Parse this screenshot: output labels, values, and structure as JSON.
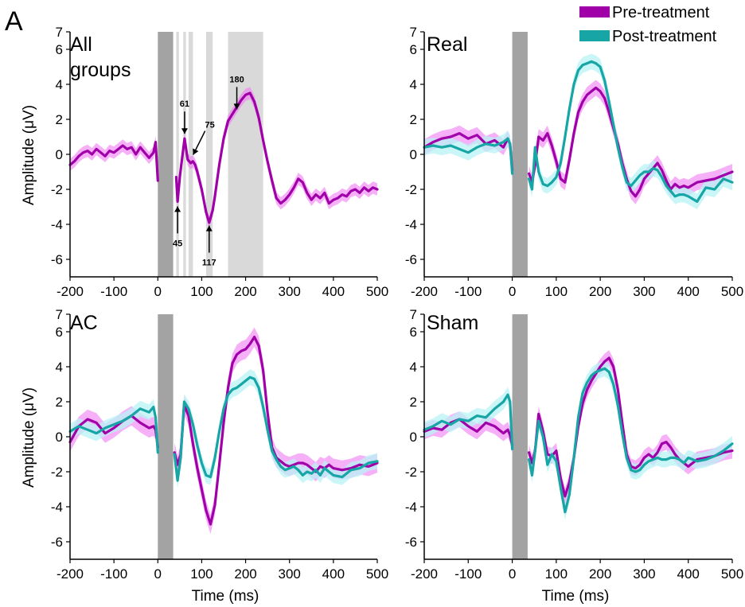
{
  "figure": {
    "panel_label": "A",
    "legend": [
      {
        "label": "Pre-treatment",
        "color": "#a000a8"
      },
      {
        "label": "Post-treatment",
        "color": "#17a5a5"
      }
    ],
    "colors": {
      "pre_line": "#a000a8",
      "pre_band": "#f07cf4",
      "post_line": "#17a5a5",
      "post_band": "#b8f3f6",
      "stim_block": "#a3a3a3",
      "window_shade": "#d9d9d9"
    }
  },
  "chart_data": [
    {
      "type": "line",
      "title": "All groups",
      "title_lines": [
        "All",
        "groups"
      ],
      "xlabel": "",
      "ylabel": "Amplitude (μV)",
      "xlim": [
        -200,
        500
      ],
      "ylim": [
        -7,
        7
      ],
      "xticks": [
        -200,
        -100,
        0,
        100,
        200,
        300,
        400,
        500
      ],
      "yticks": [
        -6,
        -4,
        -2,
        0,
        2,
        4,
        6,
        7
      ],
      "stimulus_block": [
        0,
        35
      ],
      "analysis_windows": [
        [
          42,
          48
        ],
        [
          58,
          64
        ],
        [
          70,
          80
        ],
        [
          110,
          125
        ],
        [
          160,
          240
        ]
      ],
      "annotations": [
        {
          "text": "45",
          "x": 45,
          "y": -2.7,
          "dir": "up"
        },
        {
          "text": "61",
          "x": 61,
          "y": 0.9,
          "dir": "down"
        },
        {
          "text": "75",
          "x": 75,
          "y": -0.3,
          "dir": "diag"
        },
        {
          "text": "117",
          "x": 117,
          "y": -3.8,
          "dir": "up"
        },
        {
          "text": "180",
          "x": 180,
          "y": 2.3,
          "dir": "down"
        }
      ],
      "series": [
        {
          "key": "pre",
          "x": [
            -200,
            -190,
            -180,
            -170,
            -160,
            -150,
            -140,
            -130,
            -120,
            -110,
            -100,
            -90,
            -80,
            -70,
            -60,
            -50,
            -40,
            -30,
            -20,
            -10,
            -5,
            0,
            null,
            42,
            45,
            50,
            55,
            61,
            68,
            75,
            80,
            85,
            90,
            100,
            110,
            117,
            125,
            130,
            140,
            150,
            160,
            170,
            180,
            190,
            200,
            210,
            220,
            230,
            240,
            250,
            260,
            270,
            280,
            290,
            300,
            310,
            320,
            330,
            340,
            350,
            360,
            370,
            380,
            390,
            400,
            410,
            420,
            430,
            440,
            450,
            460,
            470,
            480,
            490,
            500
          ],
          "y": [
            -0.6,
            -0.4,
            -0.1,
            0.1,
            0.2,
            0.0,
            0.3,
            0.1,
            -0.1,
            0.2,
            0.1,
            0.3,
            0.5,
            0.3,
            0.4,
            0.0,
            0.4,
            0.1,
            -0.2,
            0.1,
            0.7,
            -1.5,
            null,
            -1.3,
            -2.7,
            -1.3,
            -0.3,
            0.9,
            -0.3,
            -0.5,
            -0.4,
            -0.6,
            -1.0,
            -2.0,
            -3.3,
            -3.9,
            -3.2,
            -2.4,
            -0.6,
            0.9,
            1.9,
            2.3,
            2.7,
            3.1,
            3.4,
            3.5,
            3.0,
            2.1,
            0.8,
            -0.4,
            -1.5,
            -2.5,
            -2.8,
            -2.6,
            -2.3,
            -1.9,
            -1.4,
            -1.6,
            -2.2,
            -2.6,
            -2.3,
            -2.5,
            -2.2,
            -2.8,
            -2.6,
            -2.5,
            -2.3,
            -2.4,
            -2.1,
            -2.0,
            -2.2,
            -1.9,
            -2.1,
            -1.9,
            -2.0
          ],
          "band": 0.35
        }
      ]
    },
    {
      "type": "line",
      "title": "Real",
      "xlabel": "",
      "ylabel": "",
      "xlim": [
        -200,
        500
      ],
      "ylim": [
        -7,
        7
      ],
      "xticks": [
        -200,
        -100,
        0,
        100,
        200,
        300,
        400,
        500
      ],
      "yticks": [
        -6,
        -4,
        -2,
        0,
        2,
        4,
        6,
        7
      ],
      "stimulus_block": [
        0,
        35
      ],
      "series": [
        {
          "name": "Pre-treatment",
          "key": "pre",
          "x": [
            -200,
            -180,
            -160,
            -140,
            -120,
            -100,
            -80,
            -60,
            -40,
            -20,
            -10,
            -5,
            0,
            null,
            38,
            45,
            52,
            60,
            70,
            80,
            90,
            100,
            110,
            120,
            130,
            140,
            150,
            160,
            170,
            180,
            190,
            200,
            210,
            220,
            230,
            240,
            250,
            260,
            270,
            280,
            290,
            300,
            310,
            320,
            330,
            340,
            350,
            360,
            370,
            380,
            390,
            400,
            420,
            440,
            460,
            480,
            500
          ],
          "y": [
            0.4,
            0.7,
            0.9,
            1.0,
            1.2,
            0.9,
            1.1,
            0.6,
            0.8,
            0.4,
            0.9,
            0.6,
            -0.9,
            null,
            -1.1,
            -1.6,
            -0.6,
            1.0,
            0.8,
            1.2,
            0.5,
            -0.4,
            -1.4,
            -1.6,
            -0.3,
            1.2,
            2.4,
            3.0,
            3.4,
            3.6,
            3.8,
            3.6,
            3.2,
            2.4,
            1.5,
            0.6,
            -0.5,
            -1.4,
            -2.1,
            -2.4,
            -2.0,
            -1.4,
            -1.1,
            -0.8,
            -0.5,
            -0.9,
            -1.5,
            -2.0,
            -1.7,
            -1.9,
            -1.8,
            -1.9,
            -1.6,
            -1.5,
            -1.4,
            -1.2,
            -1.0
          ],
          "band": 0.45
        },
        {
          "name": "Post-treatment",
          "key": "post",
          "x": [
            -200,
            -180,
            -160,
            -140,
            -120,
            -100,
            -80,
            -60,
            -40,
            -20,
            -10,
            -5,
            0,
            null,
            38,
            45,
            52,
            60,
            70,
            80,
            90,
            100,
            110,
            120,
            130,
            140,
            150,
            160,
            170,
            180,
            190,
            200,
            210,
            220,
            230,
            240,
            250,
            260,
            270,
            280,
            290,
            300,
            310,
            320,
            330,
            340,
            350,
            360,
            370,
            380,
            390,
            400,
            420,
            440,
            460,
            480,
            500
          ],
          "y": [
            0.4,
            0.5,
            0.4,
            0.5,
            0.3,
            0.1,
            0.4,
            0.6,
            0.5,
            0.7,
            0.9,
            0.6,
            -1.1,
            null,
            -1.4,
            -2.0,
            0.4,
            -1.0,
            -1.7,
            -1.8,
            -1.6,
            -1.3,
            -0.5,
            1.0,
            2.6,
            4.0,
            4.8,
            5.1,
            5.2,
            5.3,
            5.2,
            5.0,
            4.2,
            3.0,
            1.7,
            0.4,
            -0.7,
            -1.6,
            -1.8,
            -1.5,
            -1.2,
            -1.0,
            -1.0,
            -0.8,
            -0.9,
            -1.3,
            -1.8,
            -2.1,
            -2.4,
            -2.3,
            -2.3,
            -2.4,
            -2.7,
            -1.9,
            -2.0,
            -1.4,
            -1.6
          ],
          "band": 0.45
        }
      ]
    },
    {
      "type": "line",
      "title": "AC",
      "xlabel": "Time (ms)",
      "ylabel": "Amplitude (μV)",
      "xlim": [
        -200,
        500
      ],
      "ylim": [
        -7,
        7
      ],
      "xticks": [
        -200,
        -100,
        0,
        100,
        200,
        300,
        400,
        500
      ],
      "yticks": [
        -6,
        -4,
        -2,
        0,
        2,
        4,
        6,
        7
      ],
      "stimulus_block": [
        0,
        35
      ],
      "series": [
        {
          "name": "Pre-treatment",
          "key": "pre",
          "x": [
            -200,
            -180,
            -160,
            -140,
            -120,
            -100,
            -80,
            -60,
            -40,
            -20,
            -10,
            -5,
            0,
            null,
            38,
            45,
            52,
            60,
            70,
            80,
            90,
            100,
            110,
            120,
            130,
            140,
            150,
            160,
            170,
            180,
            190,
            200,
            210,
            220,
            230,
            240,
            250,
            260,
            270,
            280,
            290,
            300,
            310,
            320,
            330,
            340,
            350,
            360,
            370,
            380,
            390,
            400,
            420,
            440,
            460,
            480,
            500
          ],
          "y": [
            -0.3,
            0.6,
            1.0,
            0.8,
            0.2,
            0.5,
            0.9,
            1.2,
            0.8,
            0.5,
            0.6,
            0.4,
            -0.6,
            null,
            -0.9,
            -1.6,
            -1.0,
            1.8,
            1.2,
            -0.4,
            -1.8,
            -3.0,
            -4.2,
            -5.0,
            -3.9,
            -1.6,
            0.8,
            2.8,
            4.2,
            4.7,
            4.9,
            5.0,
            5.3,
            5.7,
            5.2,
            3.8,
            1.4,
            -0.6,
            -1.2,
            -1.4,
            -1.6,
            -1.7,
            -1.6,
            -1.5,
            -1.5,
            -1.6,
            -1.8,
            -2.0,
            -1.7,
            -1.8,
            -1.6,
            -1.8,
            -1.9,
            -1.8,
            -1.6,
            -1.7,
            -1.5
          ],
          "band": 0.55
        },
        {
          "name": "Post-treatment",
          "key": "post",
          "x": [
            -200,
            -180,
            -160,
            -140,
            -120,
            -100,
            -80,
            -60,
            -40,
            -20,
            -10,
            -5,
            0,
            null,
            38,
            45,
            52,
            60,
            70,
            80,
            90,
            100,
            110,
            120,
            130,
            140,
            150,
            160,
            170,
            180,
            190,
            200,
            210,
            220,
            230,
            240,
            250,
            260,
            270,
            280,
            290,
            300,
            310,
            320,
            330,
            340,
            350,
            360,
            370,
            380,
            390,
            400,
            420,
            440,
            460,
            480,
            500
          ],
          "y": [
            0.3,
            0.6,
            0.4,
            0.2,
            0.5,
            0.7,
            0.9,
            1.2,
            1.6,
            1.4,
            1.7,
            1.1,
            -0.9,
            null,
            -1.0,
            -2.5,
            -1.2,
            2.0,
            1.6,
            0.7,
            -0.5,
            -1.5,
            -2.2,
            -2.3,
            -1.2,
            0.3,
            1.6,
            2.4,
            2.7,
            2.8,
            3.0,
            3.2,
            3.4,
            3.3,
            2.8,
            1.7,
            0.4,
            -0.8,
            -1.3,
            -1.7,
            -1.9,
            -1.8,
            -1.7,
            -1.9,
            -2.2,
            -2.0,
            -2.1,
            -1.9,
            -2.2,
            -1.8,
            -2.0,
            -2.2,
            -2.3,
            -1.9,
            -1.8,
            -1.5,
            -1.4
          ],
          "band": 0.45
        }
      ]
    },
    {
      "type": "line",
      "title": "Sham",
      "xlabel": "Time (ms)",
      "ylabel": "",
      "xlim": [
        -200,
        500
      ],
      "ylim": [
        -7,
        7
      ],
      "xticks": [
        -200,
        -100,
        0,
        100,
        200,
        300,
        400,
        500
      ],
      "yticks": [
        -6,
        -4,
        -2,
        0,
        2,
        4,
        6,
        7
      ],
      "stimulus_block": [
        0,
        35
      ],
      "series": [
        {
          "name": "Pre-treatment",
          "key": "pre",
          "x": [
            -200,
            -180,
            -160,
            -140,
            -120,
            -100,
            -80,
            -60,
            -40,
            -20,
            -10,
            -5,
            0,
            null,
            38,
            45,
            52,
            60,
            70,
            80,
            90,
            100,
            110,
            120,
            130,
            140,
            150,
            160,
            170,
            180,
            190,
            200,
            210,
            220,
            230,
            240,
            250,
            260,
            270,
            280,
            290,
            300,
            310,
            320,
            330,
            340,
            350,
            360,
            370,
            380,
            390,
            400,
            420,
            440,
            460,
            480,
            500
          ],
          "y": [
            0.3,
            0.5,
            0.4,
            0.8,
            1.0,
            0.6,
            0.3,
            0.8,
            0.6,
            0.2,
            0.4,
            0.1,
            -0.5,
            null,
            -0.9,
            -1.5,
            -0.8,
            1.3,
            0.3,
            -1.0,
            -1.1,
            -0.8,
            -2.4,
            -3.4,
            -2.6,
            -1.2,
            0.6,
            1.9,
            2.7,
            3.2,
            3.6,
            4.0,
            4.3,
            4.5,
            4.0,
            2.7,
            0.8,
            -1.0,
            -1.7,
            -1.8,
            -1.6,
            -1.2,
            -1.0,
            -1.2,
            -0.9,
            -0.4,
            -0.3,
            -0.6,
            -1.0,
            -1.3,
            -1.5,
            -1.7,
            -1.3,
            -1.2,
            -1.1,
            -0.9,
            -0.8
          ],
          "band": 0.45
        },
        {
          "name": "Post-treatment",
          "key": "post",
          "x": [
            -200,
            -180,
            -160,
            -140,
            -120,
            -100,
            -80,
            -60,
            -40,
            -20,
            -10,
            -5,
            0,
            null,
            38,
            45,
            52,
            60,
            70,
            80,
            90,
            100,
            110,
            120,
            130,
            140,
            150,
            160,
            170,
            180,
            190,
            200,
            210,
            220,
            230,
            240,
            250,
            260,
            270,
            280,
            290,
            300,
            310,
            320,
            330,
            340,
            350,
            360,
            370,
            380,
            390,
            400,
            420,
            440,
            460,
            480,
            500
          ],
          "y": [
            0.4,
            0.6,
            0.9,
            0.7,
            1.0,
            0.9,
            1.2,
            1.1,
            1.6,
            2.0,
            2.4,
            2.0,
            -0.7,
            null,
            -1.3,
            -2.2,
            -0.8,
            0.9,
            0.0,
            -1.6,
            -1.0,
            -1.4,
            -2.9,
            -4.3,
            -3.3,
            -1.2,
            1.1,
            2.5,
            3.1,
            3.5,
            3.7,
            3.8,
            3.9,
            3.7,
            3.0,
            1.8,
            0.2,
            -1.2,
            -1.9,
            -2.0,
            -1.9,
            -1.6,
            -1.4,
            -1.3,
            -1.2,
            -1.3,
            -1.3,
            -1.2,
            -1.2,
            -1.3,
            -1.5,
            -1.2,
            -1.4,
            -1.3,
            -1.1,
            -0.8,
            -0.4
          ],
          "band": 0.45
        }
      ]
    }
  ]
}
